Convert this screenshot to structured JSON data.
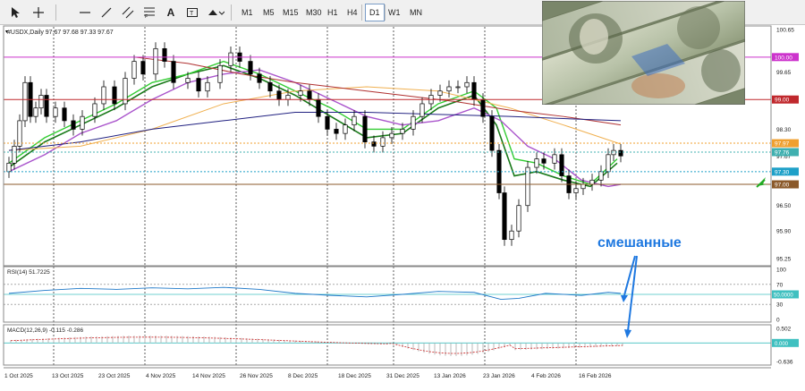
{
  "toolbar": {
    "tools": [
      "cursor-icon",
      "crosshair-icon",
      "horizontal-line-icon",
      "trendline-icon",
      "equidistant-channel-icon",
      "fibonacci-icon",
      "text-icon",
      "text-label-icon",
      "shapes-icon"
    ],
    "timeframes": [
      "M1",
      "M5",
      "M15",
      "M30",
      "H1",
      "H4",
      "D1",
      "W1",
      "MN"
    ],
    "active_timeframe": "D1"
  },
  "chart": {
    "header": "#USDX,Daily  97.67 97.68 97.33 97.67",
    "price_labels": [
      "100.65",
      "100.00",
      "99.65",
      "99.00",
      "98.30",
      "97.97",
      "97.67",
      "97.30",
      "97.00",
      "96.50",
      "95.90",
      "95.25"
    ],
    "right_tags": [
      {
        "text": "100.00",
        "color": "#cc33cc",
        "price": 100.0
      },
      {
        "text": "99.00",
        "color": "#c0282d",
        "price": 99.0
      },
      {
        "text": "97.97",
        "color": "#f0a030",
        "price": 97.97
      },
      {
        "text": "97.76",
        "color": "#40b0b0",
        "price": 97.76
      },
      {
        "text": "97.30",
        "color": "#1ea0c8",
        "price": 97.3
      },
      {
        "text": "97.00",
        "color": "#8b5a2b",
        "price": 97.0
      }
    ],
    "date_labels": [
      "1 Oct 2025",
      "13 Oct 2025",
      "23 Oct 2025",
      "4 Nov 2025",
      "14 Nov 2025",
      "26 Nov 2025",
      "8 Dec 2025",
      "18 Dec 2025",
      "31 Dec 2025",
      "13 Jan 2026",
      "23 Jan 2026",
      "4 Feb 2026",
      "16 Feb 2026"
    ],
    "annotation": "смешанные"
  },
  "rsi": {
    "header": "RSI(14) 51.7225",
    "scale": [
      "100",
      "70",
      "50.0000",
      "30",
      "0"
    ]
  },
  "macd": {
    "header": "MACD(12,26,9) -0.115 -0.286",
    "scale": [
      "0.502",
      "0.000",
      "-0.636"
    ]
  },
  "colors": {
    "bull_candle": "#ffffff",
    "bear_candle": "#000000",
    "ma_fast": "#1a7a1a",
    "ma_mid": "#33cc33",
    "ma_purple": "#aa55cc",
    "ma_orange": "#f0b050",
    "ma_red": "#b03030",
    "ma_navy": "#202080",
    "annotation": "#1e78e0"
  }
}
